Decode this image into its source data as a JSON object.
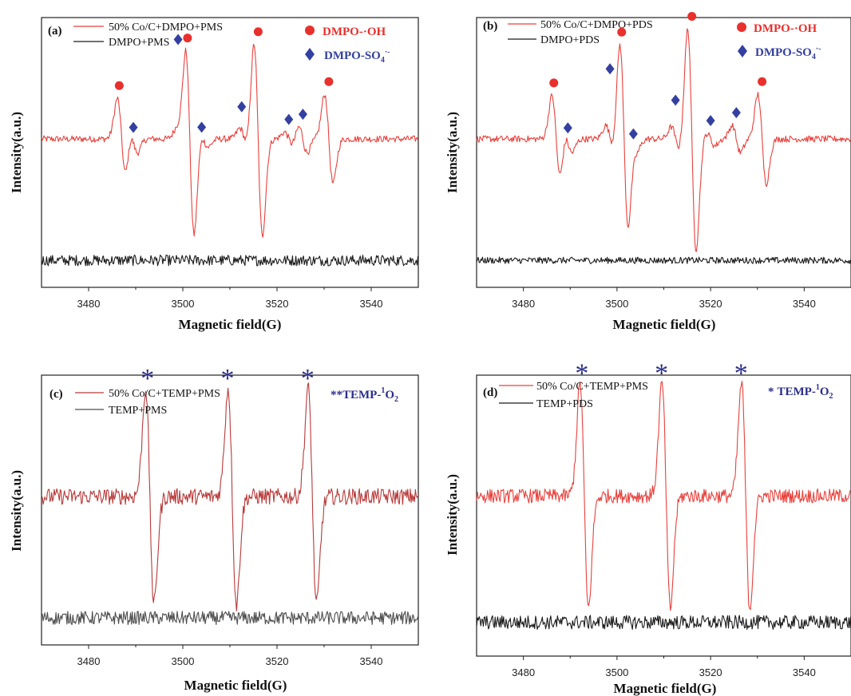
{
  "chart_data": [
    {
      "type": "line",
      "panel": "(a)",
      "xlabel": "Magnetic field(G)",
      "ylabel": "Intensity(a.u.)",
      "xlim": [
        3470,
        3550
      ],
      "xticks": [
        3480,
        3500,
        3520,
        3540
      ],
      "series": [
        {
          "name": "50% Co/C+DMPO+PMS",
          "color": "#e8413c",
          "baseline": 0.55,
          "peaks": [
            [
              3487,
              0.3
            ],
            [
              3489.5,
              0.1
            ],
            [
              3499.5,
              0.07
            ],
            [
              3501.5,
              0.72
            ],
            [
              3504.5,
              0.06
            ],
            [
              3513,
              0.08
            ],
            [
              3516,
              0.72
            ],
            [
              3522.5,
              0.05
            ],
            [
              3525.5,
              0.1
            ],
            [
              3531,
              0.33
            ]
          ],
          "noise": 0.012
        },
        {
          "name": "DMPO+PMS",
          "color": "#1a1a1a",
          "baseline": 0.1,
          "peaks": [],
          "noise": 0.02
        }
      ],
      "markers": {
        "DMPO-·OH": {
          "color": "#e8302c",
          "shape": "circle",
          "x": [
            3486.5,
            3501,
            3516,
            3531
          ]
        },
        "DMPO-SO4·-": {
          "color": "#3440a0",
          "shape": "diamond",
          "x": [
            3489.5,
            3499,
            3504,
            3512.5,
            3522.5,
            3525.5
          ]
        }
      }
    },
    {
      "type": "line",
      "panel": "(b)",
      "xlabel": "Magnetic field(G)",
      "ylabel": "Intensity(a.u.)",
      "xlim": [
        3470,
        3550
      ],
      "xticks": [
        3480,
        3500,
        3520,
        3540
      ],
      "series": [
        {
          "name": "50% Co/C+DMPO+PDS",
          "color": "#e8413c",
          "baseline": 0.55,
          "peaks": [
            [
              3487,
              0.32
            ],
            [
              3489.5,
              0.1
            ],
            [
              3498.5,
              0.1
            ],
            [
              3501.5,
              0.72
            ],
            [
              3503.5,
              0.08
            ],
            [
              3512.5,
              0.09
            ],
            [
              3516,
              0.82
            ],
            [
              3520,
              0.05
            ],
            [
              3525.5,
              0.1
            ],
            [
              3531,
              0.33
            ]
          ],
          "noise": 0.012
        },
        {
          "name": "DMPO+PDS",
          "color": "#1a1a1a",
          "baseline": 0.1,
          "peaks": [],
          "noise": 0.012
        }
      ],
      "markers": {
        "DMPO-·OH": {
          "color": "#e8302c",
          "shape": "circle",
          "x": [
            3486.5,
            3501,
            3516,
            3531
          ]
        },
        "DMPO-SO4·-": {
          "color": "#3440a0",
          "shape": "diamond",
          "x": [
            3489.5,
            3498.5,
            3503.5,
            3512.5,
            3520,
            3525.5
          ]
        }
      }
    },
    {
      "type": "line",
      "panel": "(c)",
      "xlabel": "Magnetic field(G)",
      "ylabel": "Intensity(a.u.)",
      "xlim": [
        3470,
        3550
      ],
      "xticks": [
        3480,
        3500,
        3520,
        3540
      ],
      "series": [
        {
          "name": "50% Co/C+TEMP+PMS",
          "color": "#b83a3a",
          "baseline": 0.55,
          "peaks": [
            [
              3493,
              0.8
            ],
            [
              3510.5,
              0.8
            ],
            [
              3527.5,
              0.8
            ]
          ],
          "noise": 0.03
        },
        {
          "name": "TEMP+PMS",
          "color": "#4d4d4d",
          "baseline": 0.1,
          "peaks": [],
          "noise": 0.025
        }
      ],
      "markers": {
        "TEMP-1O2": {
          "color": "#2b2e8c",
          "shape": "asterisk",
          "x": [
            3492.5,
            3509.5,
            3526.5
          ]
        }
      }
    },
    {
      "type": "line",
      "panel": "(d)",
      "xlabel": "Magnetic field(G)",
      "ylabel": "Intensity(a.u.)",
      "xlim": [
        3470,
        3550
      ],
      "xticks": [
        3480,
        3500,
        3520,
        3540
      ],
      "series": [
        {
          "name": "50% Co/C+TEMP+PMS",
          "color": "#e8413c",
          "baseline": 0.57,
          "peaks": [
            [
              3493,
              0.8
            ],
            [
              3510.5,
              0.8
            ],
            [
              3527.5,
              0.8
            ]
          ],
          "noise": 0.025
        },
        {
          "name": "TEMP+PDS",
          "color": "#1a1a1a",
          "baseline": 0.12,
          "peaks": [],
          "noise": 0.025
        }
      ],
      "markers": {
        "TEMP-1O2": {
          "color": "#2b2e8c",
          "shape": "asterisk",
          "x": [
            3492.5,
            3509.5,
            3526.5
          ]
        }
      }
    }
  ],
  "labels": {
    "a_panel": "(a)",
    "b_panel": "(b)",
    "c_panel": "(c)",
    "d_panel": "(d)",
    "a_leg1": "50% Co/C+DMPO+PMS",
    "a_leg2": "DMPO+PMS",
    "b_leg1": "50% Co/C+DMPO+PDS",
    "b_leg2": "DMPO+PDS",
    "c_leg1": "50% Co/C+TEMP+PMS",
    "c_leg2": "TEMP+PMS",
    "d_leg1": "50% Co/C+TEMP+PMS",
    "d_leg2": "TEMP+PDS",
    "oh_prefix": "DMPO-·OH",
    "so4_prefix": "DMPO-SO",
    "so4_sub": "4",
    "so4_sup": "·-",
    "temp_prefix": "TEMP-",
    "temp_sup": "1",
    "temp_mid": "O",
    "temp_sub": "2",
    "c_asterisk": "**",
    "d_asterisk": "*",
    "xlabel": "Magnetic field(G)",
    "ylabel": "Intensity(a.u.)"
  }
}
